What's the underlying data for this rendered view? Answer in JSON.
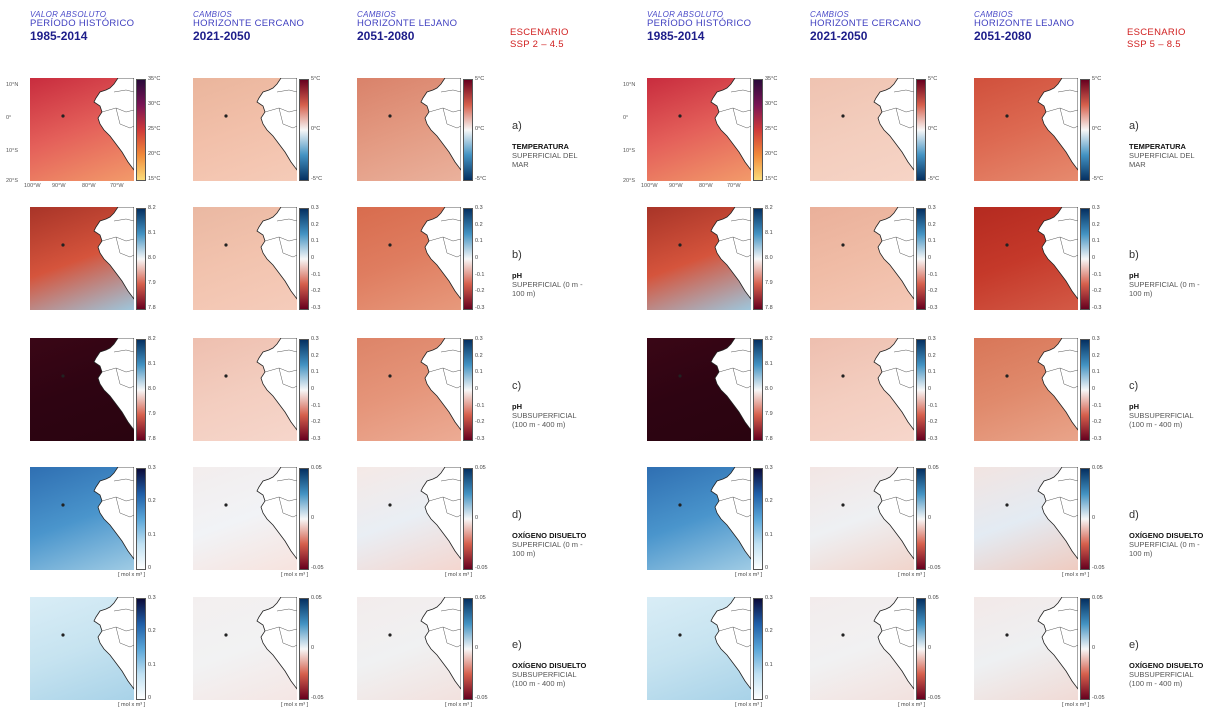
{
  "headers": {
    "col1": {
      "l1": "VALOR ABSOLUTO",
      "l2": "PERÍODO HISTÓRICO",
      "l3": "1985-2014"
    },
    "col2": {
      "l1": "CAMBIOS",
      "l2": "HORIZONTE CERCANO",
      "l3": "2021-2050"
    },
    "col3": {
      "l1": "CAMBIOS",
      "l2": "HORIZONTE LEJANO",
      "l3": "2051-2080"
    }
  },
  "scenarios": [
    {
      "l1": "ESCENARIO",
      "l2": "SSP 2 – 4.5"
    },
    {
      "l1": "ESCENARIO",
      "l2": "SSP 5 – 8.5"
    }
  ],
  "rows": [
    {
      "key": "a)",
      "v1": "TEMPERATURA",
      "v2": "SUPERFICIAL DEL MAR"
    },
    {
      "key": "b)",
      "v1": "pH",
      "v2": "SUPERFICIAL (0 m - 100 m)"
    },
    {
      "key": "c)",
      "v1": "pH",
      "v2": "SUBSUPERFICIAL (100 m - 400 m)"
    },
    {
      "key": "d)",
      "v1": "OXÍGENO DISUELTO",
      "v2": "SUPERFICIAL (0 m - 100 m)"
    },
    {
      "key": "e)",
      "v1": "OXÍGENO DISUELTO",
      "v2": "SUBSUPERFICIAL (100 m - 400 m)"
    }
  ],
  "axis_labels": {
    "y": [
      "10°N",
      "0°",
      "10°S",
      "20°S"
    ],
    "x": [
      "100°W",
      "90°W",
      "80°W",
      "70°W"
    ]
  },
  "colorbars": {
    "temp_abs": {
      "ticks": [
        "35°C",
        "30°C",
        "25°C",
        "20°C",
        "15°C"
      ],
      "colors": [
        "#2a0a3a",
        "#7a1555",
        "#cf3a3a",
        "#f08a3a",
        "#fbdc7a"
      ],
      "unit": ""
    },
    "temp_chg": {
      "ticks": [
        "5°C",
        "0°C",
        "-5°C"
      ],
      "colors": [
        "#67001f",
        "#d6604d",
        "#f7f7f7",
        "#4393c3",
        "#053061"
      ],
      "unit": ""
    },
    "ph_abs": {
      "ticks": [
        "8.2",
        "8.1",
        "8.0",
        "7.9",
        "7.8"
      ],
      "colors": [
        "#053061",
        "#4393c3",
        "#f7f7f7",
        "#d6604d",
        "#67001f"
      ],
      "unit": ""
    },
    "ph_chg": {
      "ticks": [
        "0.3",
        "0.2",
        "0.1",
        "0",
        "-0.1",
        "-0.2",
        "-0.3"
      ],
      "colors": [
        "#053061",
        "#4393c3",
        "#f7f7f7",
        "#d6604d",
        "#67001f"
      ],
      "unit": ""
    },
    "ox_abs": {
      "ticks": [
        "0.3",
        "0.2",
        "0.1",
        "0"
      ],
      "colors": [
        "#0b0b3a",
        "#1f5fa8",
        "#5aa6d8",
        "#bfe0f2",
        "#ffffff"
      ],
      "unit": "[ mol x m³ ]"
    },
    "ox_chg": {
      "ticks": [
        "0.05",
        "0",
        "-0.05"
      ],
      "colors": [
        "#053061",
        "#4393c3",
        "#f7f7f7",
        "#d6604d",
        "#67001f"
      ],
      "unit": "[ mol x m³ ]"
    }
  },
  "chart_data": {
    "type": "heatmap",
    "layout": "grid of maps: 5 variables × 3 periods × 2 scenarios",
    "region_extent": {
      "lat": [
        "20°S",
        "10°N"
      ],
      "lon": [
        "100°W",
        "70°W"
      ]
    },
    "columns": [
      "PERÍODO HISTÓRICO 1985-2014",
      "HORIZONTE CERCANO 2021-2050",
      "HORIZONTE LEJANO 2051-2080"
    ],
    "scenarios": [
      "SSP 2 – 4.5",
      "SSP 5 – 8.5"
    ],
    "variables": [
      "TEMPERATURA SUPERFICIAL DEL MAR",
      "pH SUPERFICIAL (0 m - 100 m)",
      "pH SUBSUPERFICIAL (100 m - 400 m)",
      "OXÍGENO DISUELTO SUPERFICIAL (0 m - 100 m)",
      "OXÍGENO DISUELTO SUBSUPERFICIAL (100 m - 400 m)"
    ],
    "map_fills": {
      "ssp245": [
        [
          [
            "#e4605a",
            "#c82c3e",
            "#f29a6a"
          ],
          [
            "#f2c0aa",
            "#eab59c",
            "#f5cbb8"
          ],
          [
            "#e39a82",
            "#d9826a",
            "#eab19c"
          ]
        ],
        [
          [
            "#d5543c",
            "#a83428",
            "#9ec6dc"
          ],
          [
            "#f2c3ae",
            "#eab8a2",
            "#f5ccbb"
          ],
          [
            "#df7d60",
            "#d86c4e",
            "#e7997c"
          ]
        ],
        [
          [
            "#2e0412",
            "#3a0616",
            "#2a0410"
          ],
          [
            "#f3cdbf",
            "#eebfaf",
            "#f6d6cb"
          ],
          [
            "#e5957a",
            "#dd8468",
            "#ecab94"
          ]
        ],
        [
          [
            "#4a95cc",
            "#2f6fb2",
            "#9fcbe4"
          ],
          [
            "#f1f3f6",
            "#f3eded",
            "#f7e3de"
          ],
          [
            "#e9eef4",
            "#f5e9e6",
            "#f4d6cf"
          ]
        ],
        [
          [
            "#c6e3f0",
            "#d9edf6",
            "#a8d2e8"
          ],
          [
            "#f2f2f3",
            "#f3efef",
            "#f4e6e4"
          ],
          [
            "#f0f1f2",
            "#f3ecec",
            "#f2e1de"
          ]
        ]
      ],
      "ssp585": [
        [
          [
            "#e4605a",
            "#c82c3e",
            "#f29a6a"
          ],
          [
            "#f3cdbd",
            "#efc3b1",
            "#f6d4c6"
          ],
          [
            "#dd6a52",
            "#d0503c",
            "#e68a6e"
          ]
        ],
        [
          [
            "#d5543c",
            "#a83428",
            "#9ec6dc"
          ],
          [
            "#f0bca6",
            "#eab09a",
            "#f4c8b6"
          ],
          [
            "#c5392a",
            "#b42a20",
            "#d35a46"
          ]
        ],
        [
          [
            "#2e0412",
            "#3a0616",
            "#2a0410"
          ],
          [
            "#f3cdbf",
            "#eebfaf",
            "#f6d6cb"
          ],
          [
            "#e08a6c",
            "#d87658",
            "#e9a48a"
          ]
        ],
        [
          [
            "#4a95cc",
            "#2f6fb2",
            "#9fcbe4"
          ],
          [
            "#eef0f3",
            "#f3e6e4",
            "#f1d4cb"
          ],
          [
            "#e3ebf3",
            "#f2e4e1",
            "#efcbc0"
          ]
        ],
        [
          [
            "#c6e3f0",
            "#d9edf6",
            "#a8d2e8"
          ],
          [
            "#f1f1f2",
            "#f3ecec",
            "#f2e1de"
          ],
          [
            "#eef0f2",
            "#f3e9e8",
            "#f0dad5"
          ]
        ]
      ]
    }
  }
}
